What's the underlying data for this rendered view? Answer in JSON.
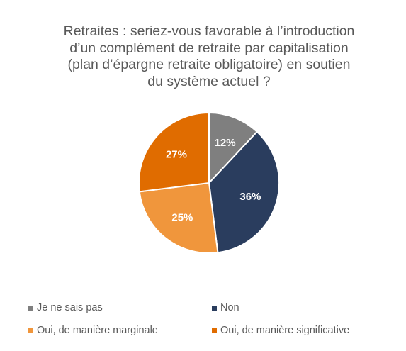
{
  "chart_data": {
    "type": "pie",
    "title_lines": [
      "Retraites : seriez-vous favorable à l’introduction",
      "d’un complément de retraite par capitalisation",
      "(plan d’épargne retraite obligatoire) en soutien",
      "du système actuel ?"
    ],
    "slices": [
      {
        "label": "Je ne sais pas",
        "value": 12,
        "display": "12%",
        "color": "#7f7f7f"
      },
      {
        "label": "Non",
        "value": 36,
        "display": "36%",
        "color": "#2a3d5e"
      },
      {
        "label": "Oui, de manière marginale",
        "value": 25,
        "display": "25%",
        "color": "#f0963c"
      },
      {
        "label": "Oui, de manière significative",
        "value": 27,
        "display": "27%",
        "color": "#e06c00"
      }
    ],
    "legend_position": "bottom"
  }
}
